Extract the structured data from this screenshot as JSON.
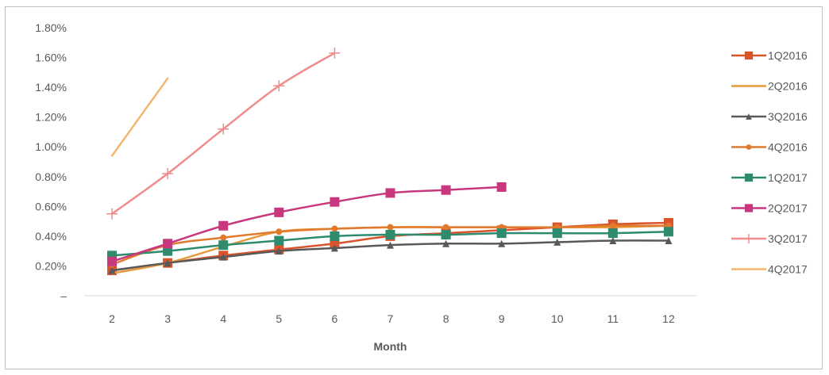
{
  "chart_data": {
    "type": "line",
    "title": "",
    "xlabel": "Month",
    "ylabel": "",
    "x": [
      2,
      3,
      4,
      5,
      6,
      7,
      8,
      9,
      10,
      11,
      12
    ],
    "xlim": [
      1.5,
      12.5
    ],
    "ylim": [
      0,
      1.8
    ],
    "yticks": [
      0,
      0.2,
      0.4,
      0.6,
      0.8,
      1.0,
      1.2,
      1.4,
      1.6,
      1.8
    ],
    "ytick_labels": [
      "–",
      "0.20%",
      "0.40%",
      "0.60%",
      "0.80%",
      "1.00%",
      "1.20%",
      "1.40%",
      "1.60%",
      "1.80%"
    ],
    "grid": false,
    "legend_position": "right",
    "series": [
      {
        "name": "1Q2016",
        "color": "#d9542b",
        "marker": "square",
        "values": [
          0.17,
          0.22,
          0.27,
          0.31,
          0.35,
          0.4,
          0.42,
          0.44,
          0.46,
          0.48,
          0.49
        ]
      },
      {
        "name": "2Q2016",
        "color": "#e59a3c",
        "marker": "none",
        "values": [
          0.15,
          0.22,
          0.33,
          0.43,
          0.45,
          0.46,
          0.46,
          0.46,
          0.46,
          0.46,
          0.47
        ]
      },
      {
        "name": "3Q2016",
        "color": "#595959",
        "marker": "triangle",
        "values": [
          0.17,
          0.22,
          0.26,
          0.3,
          0.32,
          0.34,
          0.35,
          0.35,
          0.36,
          0.37,
          0.37
        ]
      },
      {
        "name": "4Q2016",
        "color": "#e07a2e",
        "marker": "circle",
        "values": [
          0.21,
          0.34,
          0.39,
          0.43,
          0.45,
          0.46,
          0.46,
          0.46,
          0.46,
          0.47,
          0.47
        ]
      },
      {
        "name": "1Q2017",
        "color": "#2e8b6e",
        "marker": "square",
        "values": [
          0.27,
          0.3,
          0.34,
          0.37,
          0.4,
          0.41,
          0.41,
          0.42,
          0.42,
          0.42,
          0.43
        ]
      },
      {
        "name": "2Q2017",
        "color": "#c8387f",
        "marker": "square",
        "values": [
          0.23,
          0.35,
          0.47,
          0.56,
          0.63,
          0.69,
          0.71,
          0.73,
          null,
          null,
          null
        ]
      },
      {
        "name": "3Q2017",
        "color": "#f08c8c",
        "marker": "plus",
        "values": [
          0.55,
          0.82,
          1.12,
          1.41,
          1.63,
          null,
          null,
          null,
          null,
          null,
          null
        ]
      },
      {
        "name": "4Q2017",
        "color": "#f5b56e",
        "marker": "none",
        "values": [
          0.94,
          1.46,
          null,
          null,
          null,
          null,
          null,
          null,
          null,
          null,
          null
        ]
      }
    ]
  }
}
